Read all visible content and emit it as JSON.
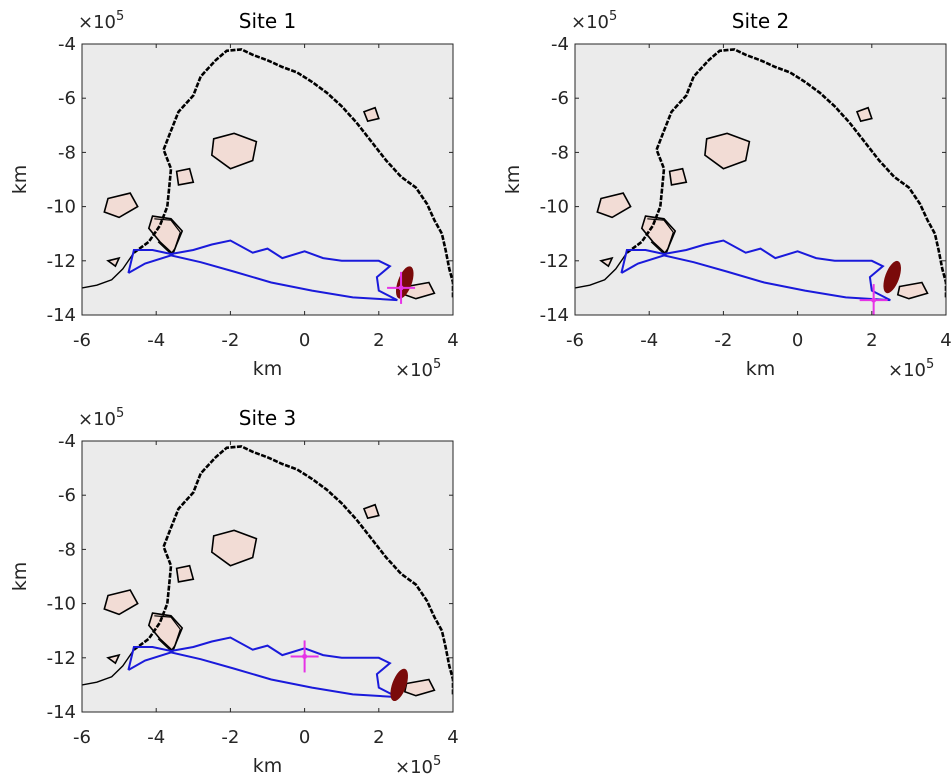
{
  "colors": {
    "axes_background": "#ebebeb",
    "coastline": "#000000",
    "island_fill": "#f2dcd5",
    "catchment_line": "#1a1adb",
    "plume": "#7a0a0a",
    "site_marker": "#e633e6"
  },
  "chart_data": [
    {
      "type": "scatter",
      "title": "Site 1",
      "xlabel": "km",
      "ylabel": "km",
      "x_exponent": "×10",
      "x_exponent_power": "5",
      "y_exponent": "×10",
      "y_exponent_power": "5",
      "xlim": [
        -6,
        4
      ],
      "ylim": [
        -14,
        -4
      ],
      "xticks": [
        "-6",
        "-4",
        "-2",
        "0",
        "2",
        "4"
      ],
      "yticks": [
        "-4",
        "-6",
        "-8",
        "-10",
        "-12",
        "-14"
      ],
      "grid": false,
      "site_marker": {
        "x": 2.6,
        "y": -13.0
      },
      "plume_location": {
        "x": 2.7,
        "y": -12.8
      }
    },
    {
      "type": "scatter",
      "title": "Site 2",
      "xlabel": "km",
      "ylabel": "km",
      "x_exponent": "×10",
      "x_exponent_power": "5",
      "y_exponent": "×10",
      "y_exponent_power": "5",
      "xlim": [
        -6,
        4
      ],
      "ylim": [
        -14,
        -4
      ],
      "xticks": [
        "-6",
        "-4",
        "-2",
        "0",
        "2",
        "4"
      ],
      "yticks": [
        "-4",
        "-6",
        "-8",
        "-10",
        "-12",
        "-14"
      ],
      "grid": false,
      "site_marker": {
        "x": 2.05,
        "y": -13.45
      },
      "plume_location": {
        "x": 2.55,
        "y": -12.6
      }
    },
    {
      "type": "scatter",
      "title": "Site 3",
      "xlabel": "km",
      "ylabel": "km",
      "x_exponent": "×10",
      "x_exponent_power": "5",
      "y_exponent": "×10",
      "y_exponent_power": "5",
      "xlim": [
        -6,
        4
      ],
      "ylim": [
        -14,
        -4
      ],
      "xticks": [
        "-6",
        "-4",
        "-2",
        "0",
        "2",
        "4"
      ],
      "yticks": [
        "-4",
        "-6",
        "-8",
        "-10",
        "-12",
        "-14"
      ],
      "grid": false,
      "site_marker": {
        "x": 0.0,
        "y": -11.95
      },
      "plume_location": {
        "x": 2.55,
        "y": -13.0
      }
    }
  ]
}
